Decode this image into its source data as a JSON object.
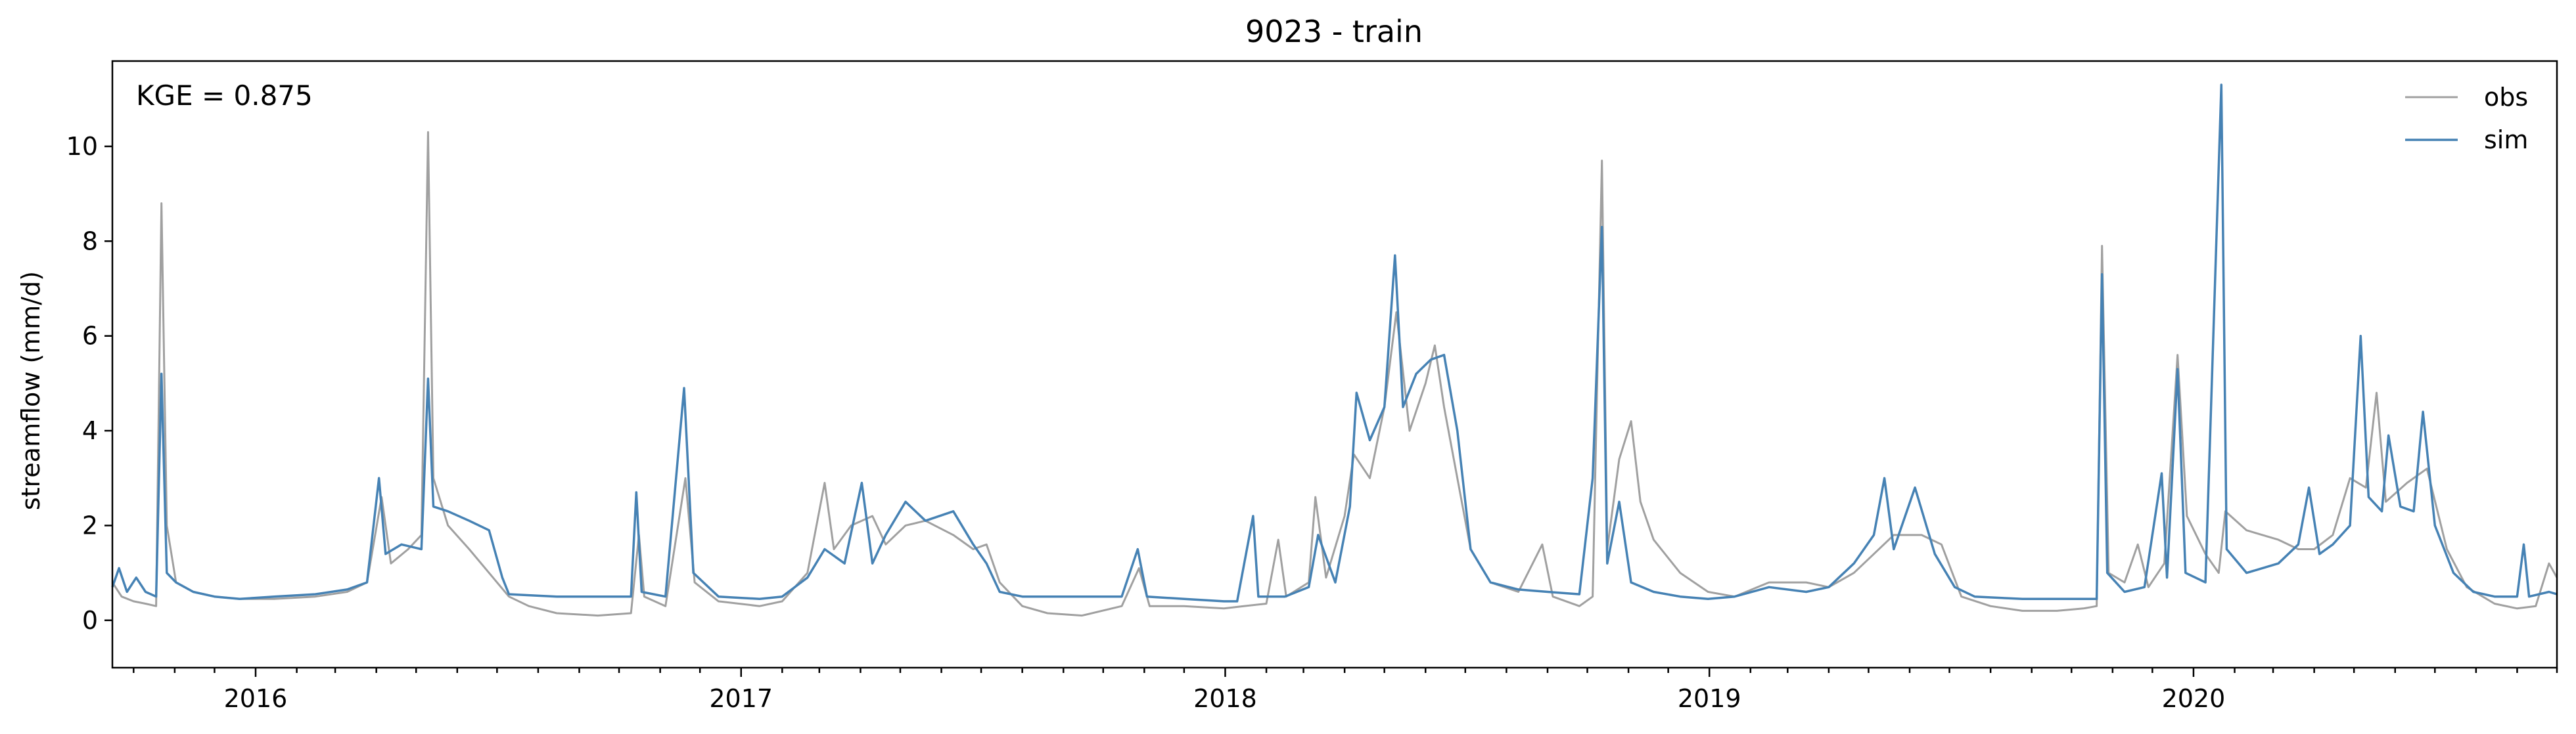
{
  "chart_data": {
    "type": "line",
    "title": "9023 - train",
    "xlabel": "",
    "ylabel": "streamflow (mm/d)",
    "annotation": "KGE = 0.875",
    "xlim": [
      "2015-09-15",
      "2020-10-01"
    ],
    "ylim": [
      -1.0,
      11.8
    ],
    "yticks": [
      0,
      2,
      4,
      6,
      8,
      10
    ],
    "xticks": [
      {
        "date": "2016-01-01",
        "label": "2016"
      },
      {
        "date": "2017-01-01",
        "label": "2017"
      },
      {
        "date": "2018-01-01",
        "label": "2018"
      },
      {
        "date": "2019-01-01",
        "label": "2019"
      },
      {
        "date": "2020-01-01",
        "label": "2020"
      }
    ],
    "grid": false,
    "legend_position": "top-right",
    "series": [
      {
        "name": "obs",
        "color": "#a0a0a0",
        "points": [
          [
            "2015-09-15",
            0.8
          ],
          [
            "2015-09-22",
            0.5
          ],
          [
            "2015-10-01",
            0.4
          ],
          [
            "2015-10-10",
            0.35
          ],
          [
            "2015-10-18",
            0.3
          ],
          [
            "2015-10-22",
            8.8
          ],
          [
            "2015-10-26",
            2.0
          ],
          [
            "2015-11-02",
            0.8
          ],
          [
            "2015-11-15",
            0.6
          ],
          [
            "2015-12-01",
            0.5
          ],
          [
            "2015-12-20",
            0.45
          ],
          [
            "2016-01-15",
            0.45
          ],
          [
            "2016-02-15",
            0.5
          ],
          [
            "2016-03-10",
            0.6
          ],
          [
            "2016-03-25",
            0.8
          ],
          [
            "2016-04-05",
            2.6
          ],
          [
            "2016-04-12",
            1.2
          ],
          [
            "2016-04-25",
            1.5
          ],
          [
            "2016-05-05",
            1.8
          ],
          [
            "2016-05-10",
            10.3
          ],
          [
            "2016-05-14",
            3.0
          ],
          [
            "2016-05-25",
            2.0
          ],
          [
            "2016-06-10",
            1.5
          ],
          [
            "2016-06-25",
            1.0
          ],
          [
            "2016-07-10",
            0.5
          ],
          [
            "2016-07-25",
            0.3
          ],
          [
            "2016-08-15",
            0.15
          ],
          [
            "2016-09-15",
            0.1
          ],
          [
            "2016-10-10",
            0.15
          ],
          [
            "2016-10-16",
            1.8
          ],
          [
            "2016-10-20",
            0.5
          ],
          [
            "2016-11-05",
            0.3
          ],
          [
            "2016-11-20",
            3.0
          ],
          [
            "2016-11-27",
            0.8
          ],
          [
            "2016-12-15",
            0.4
          ],
          [
            "2017-01-15",
            0.3
          ],
          [
            "2017-02-01",
            0.4
          ],
          [
            "2017-02-20",
            1.0
          ],
          [
            "2017-03-05",
            2.9
          ],
          [
            "2017-03-12",
            1.5
          ],
          [
            "2017-03-25",
            2.0
          ],
          [
            "2017-04-10",
            2.2
          ],
          [
            "2017-04-20",
            1.6
          ],
          [
            "2017-05-05",
            2.0
          ],
          [
            "2017-05-20",
            2.1
          ],
          [
            "2017-06-10",
            1.8
          ],
          [
            "2017-06-25",
            1.5
          ],
          [
            "2017-07-05",
            1.6
          ],
          [
            "2017-07-15",
            0.8
          ],
          [
            "2017-08-01",
            0.3
          ],
          [
            "2017-08-20",
            0.15
          ],
          [
            "2017-09-15",
            0.1
          ],
          [
            "2017-10-15",
            0.3
          ],
          [
            "2017-10-28",
            1.1
          ],
          [
            "2017-11-05",
            0.3
          ],
          [
            "2017-12-01",
            0.3
          ],
          [
            "2017-12-31",
            0.25
          ],
          [
            "2018-01-15",
            0.3
          ],
          [
            "2018-02-01",
            0.35
          ],
          [
            "2018-02-10",
            1.7
          ],
          [
            "2018-02-16",
            0.5
          ],
          [
            "2018-03-05",
            0.8
          ],
          [
            "2018-03-10",
            2.6
          ],
          [
            "2018-03-18",
            0.9
          ],
          [
            "2018-04-01",
            2.2
          ],
          [
            "2018-04-08",
            3.5
          ],
          [
            "2018-04-20",
            3.0
          ],
          [
            "2018-05-01",
            4.5
          ],
          [
            "2018-05-10",
            6.5
          ],
          [
            "2018-05-20",
            4.0
          ],
          [
            "2018-06-01",
            5.0
          ],
          [
            "2018-06-08",
            5.8
          ],
          [
            "2018-06-15",
            4.5
          ],
          [
            "2018-06-25",
            3.0
          ],
          [
            "2018-07-05",
            1.5
          ],
          [
            "2018-07-20",
            0.8
          ],
          [
            "2018-08-10",
            0.6
          ],
          [
            "2018-08-28",
            1.6
          ],
          [
            "2018-09-05",
            0.5
          ],
          [
            "2018-09-25",
            0.3
          ],
          [
            "2018-10-05",
            0.5
          ],
          [
            "2018-10-12",
            9.7
          ],
          [
            "2018-10-16",
            1.5
          ],
          [
            "2018-10-25",
            3.4
          ],
          [
            "2018-11-03",
            4.2
          ],
          [
            "2018-11-10",
            2.5
          ],
          [
            "2018-11-20",
            1.7
          ],
          [
            "2018-12-10",
            1.0
          ],
          [
            "2018-12-31",
            0.6
          ],
          [
            "2019-01-20",
            0.5
          ],
          [
            "2019-02-15",
            0.8
          ],
          [
            "2019-03-15",
            0.8
          ],
          [
            "2019-04-01",
            0.7
          ],
          [
            "2019-04-20",
            1.0
          ],
          [
            "2019-05-05",
            1.4
          ],
          [
            "2019-05-20",
            1.8
          ],
          [
            "2019-06-10",
            1.8
          ],
          [
            "2019-06-25",
            1.6
          ],
          [
            "2019-07-10",
            0.5
          ],
          [
            "2019-08-01",
            0.3
          ],
          [
            "2019-08-25",
            0.2
          ],
          [
            "2019-09-20",
            0.2
          ],
          [
            "2019-10-10",
            0.25
          ],
          [
            "2019-10-20",
            0.3
          ],
          [
            "2019-10-24",
            7.9
          ],
          [
            "2019-10-29",
            1.0
          ],
          [
            "2019-11-10",
            0.8
          ],
          [
            "2019-11-20",
            1.6
          ],
          [
            "2019-11-28",
            0.7
          ],
          [
            "2019-12-10",
            1.2
          ],
          [
            "2019-12-20",
            5.6
          ],
          [
            "2019-12-27",
            2.2
          ],
          [
            "2020-01-10",
            1.4
          ],
          [
            "2020-01-20",
            1.0
          ],
          [
            "2020-01-25",
            2.3
          ],
          [
            "2020-02-10",
            1.9
          ],
          [
            "2020-03-05",
            1.7
          ],
          [
            "2020-03-20",
            1.5
          ],
          [
            "2020-04-01",
            1.5
          ],
          [
            "2020-04-15",
            1.8
          ],
          [
            "2020-04-28",
            3.0
          ],
          [
            "2020-05-10",
            2.8
          ],
          [
            "2020-05-18",
            4.8
          ],
          [
            "2020-05-25",
            2.5
          ],
          [
            "2020-06-10",
            2.9
          ],
          [
            "2020-06-25",
            3.2
          ],
          [
            "2020-07-10",
            1.5
          ],
          [
            "2020-07-25",
            0.7
          ],
          [
            "2020-08-15",
            0.35
          ],
          [
            "2020-09-01",
            0.25
          ],
          [
            "2020-09-15",
            0.3
          ],
          [
            "2020-09-25",
            1.2
          ],
          [
            "2020-10-01",
            0.9
          ]
        ]
      },
      {
        "name": "sim",
        "color": "#4682b4",
        "points": [
          [
            "2015-09-15",
            0.7
          ],
          [
            "2015-09-20",
            1.1
          ],
          [
            "2015-09-26",
            0.6
          ],
          [
            "2015-10-03",
            0.9
          ],
          [
            "2015-10-10",
            0.6
          ],
          [
            "2015-10-18",
            0.5
          ],
          [
            "2015-10-22",
            5.2
          ],
          [
            "2015-10-26",
            1.0
          ],
          [
            "2015-11-02",
            0.8
          ],
          [
            "2015-11-15",
            0.6
          ],
          [
            "2015-12-01",
            0.5
          ],
          [
            "2015-12-20",
            0.45
          ],
          [
            "2016-01-15",
            0.5
          ],
          [
            "2016-02-15",
            0.55
          ],
          [
            "2016-03-10",
            0.65
          ],
          [
            "2016-03-25",
            0.8
          ],
          [
            "2016-04-03",
            3.0
          ],
          [
            "2016-04-08",
            1.4
          ],
          [
            "2016-04-20",
            1.6
          ],
          [
            "2016-05-05",
            1.5
          ],
          [
            "2016-05-10",
            5.1
          ],
          [
            "2016-05-14",
            2.4
          ],
          [
            "2016-05-25",
            2.3
          ],
          [
            "2016-06-10",
            2.1
          ],
          [
            "2016-06-25",
            1.9
          ],
          [
            "2016-07-05",
            0.9
          ],
          [
            "2016-07-10",
            0.55
          ],
          [
            "2016-08-15",
            0.5
          ],
          [
            "2016-09-15",
            0.5
          ],
          [
            "2016-10-10",
            0.5
          ],
          [
            "2016-10-14",
            2.7
          ],
          [
            "2016-10-18",
            0.6
          ],
          [
            "2016-11-05",
            0.5
          ],
          [
            "2016-11-19",
            4.9
          ],
          [
            "2016-11-26",
            1.0
          ],
          [
            "2016-12-15",
            0.5
          ],
          [
            "2017-01-15",
            0.45
          ],
          [
            "2017-02-01",
            0.5
          ],
          [
            "2017-02-20",
            0.9
          ],
          [
            "2017-03-05",
            1.5
          ],
          [
            "2017-03-20",
            1.2
          ],
          [
            "2017-04-02",
            2.9
          ],
          [
            "2017-04-10",
            1.2
          ],
          [
            "2017-04-20",
            1.8
          ],
          [
            "2017-05-05",
            2.5
          ],
          [
            "2017-05-20",
            2.1
          ],
          [
            "2017-06-10",
            2.3
          ],
          [
            "2017-06-25",
            1.6
          ],
          [
            "2017-07-05",
            1.2
          ],
          [
            "2017-07-15",
            0.6
          ],
          [
            "2017-08-01",
            0.5
          ],
          [
            "2017-09-15",
            0.5
          ],
          [
            "2017-10-15",
            0.5
          ],
          [
            "2017-10-27",
            1.5
          ],
          [
            "2017-11-03",
            0.5
          ],
          [
            "2017-12-01",
            0.45
          ],
          [
            "2017-12-31",
            0.4
          ],
          [
            "2018-01-10",
            0.4
          ],
          [
            "2018-01-22",
            2.2
          ],
          [
            "2018-01-26",
            0.5
          ],
          [
            "2018-02-15",
            0.5
          ],
          [
            "2018-03-05",
            0.7
          ],
          [
            "2018-03-12",
            1.8
          ],
          [
            "2018-03-25",
            0.8
          ],
          [
            "2018-04-05",
            2.4
          ],
          [
            "2018-04-10",
            4.8
          ],
          [
            "2018-04-20",
            3.8
          ],
          [
            "2018-05-01",
            4.5
          ],
          [
            "2018-05-09",
            7.7
          ],
          [
            "2018-05-15",
            4.5
          ],
          [
            "2018-05-25",
            5.2
          ],
          [
            "2018-06-05",
            5.5
          ],
          [
            "2018-06-15",
            5.6
          ],
          [
            "2018-06-25",
            4.0
          ],
          [
            "2018-07-05",
            1.5
          ],
          [
            "2018-07-20",
            0.8
          ],
          [
            "2018-08-10",
            0.65
          ],
          [
            "2018-09-01",
            0.6
          ],
          [
            "2018-09-25",
            0.55
          ],
          [
            "2018-10-05",
            3.0
          ],
          [
            "2018-10-12",
            8.3
          ],
          [
            "2018-10-16",
            1.2
          ],
          [
            "2018-10-25",
            2.5
          ],
          [
            "2018-11-03",
            0.8
          ],
          [
            "2018-11-20",
            0.6
          ],
          [
            "2018-12-10",
            0.5
          ],
          [
            "2018-12-31",
            0.45
          ],
          [
            "2019-01-20",
            0.5
          ],
          [
            "2019-02-15",
            0.7
          ],
          [
            "2019-03-15",
            0.6
          ],
          [
            "2019-04-01",
            0.7
          ],
          [
            "2019-04-20",
            1.2
          ],
          [
            "2019-05-05",
            1.8
          ],
          [
            "2019-05-13",
            3.0
          ],
          [
            "2019-05-20",
            1.5
          ],
          [
            "2019-06-05",
            2.8
          ],
          [
            "2019-06-20",
            1.4
          ],
          [
            "2019-07-05",
            0.7
          ],
          [
            "2019-07-20",
            0.5
          ],
          [
            "2019-08-25",
            0.45
          ],
          [
            "2019-09-20",
            0.45
          ],
          [
            "2019-10-10",
            0.45
          ],
          [
            "2019-10-20",
            0.45
          ],
          [
            "2019-10-24",
            7.3
          ],
          [
            "2019-10-28",
            1.0
          ],
          [
            "2019-11-10",
            0.6
          ],
          [
            "2019-11-25",
            0.7
          ],
          [
            "2019-12-08",
            3.1
          ],
          [
            "2019-12-12",
            0.9
          ],
          [
            "2019-12-20",
            5.3
          ],
          [
            "2019-12-26",
            1.0
          ],
          [
            "2020-01-10",
            0.8
          ],
          [
            "2020-01-22",
            11.3
          ],
          [
            "2020-01-26",
            1.5
          ],
          [
            "2020-02-10",
            1.0
          ],
          [
            "2020-03-05",
            1.2
          ],
          [
            "2020-03-20",
            1.6
          ],
          [
            "2020-03-28",
            2.8
          ],
          [
            "2020-04-05",
            1.4
          ],
          [
            "2020-04-15",
            1.6
          ],
          [
            "2020-04-28",
            2.0
          ],
          [
            "2020-05-06",
            6.0
          ],
          [
            "2020-05-12",
            2.6
          ],
          [
            "2020-05-22",
            2.3
          ],
          [
            "2020-05-27",
            3.9
          ],
          [
            "2020-06-05",
            2.4
          ],
          [
            "2020-06-15",
            2.3
          ],
          [
            "2020-06-22",
            4.4
          ],
          [
            "2020-07-01",
            2.0
          ],
          [
            "2020-07-15",
            1.0
          ],
          [
            "2020-07-30",
            0.6
          ],
          [
            "2020-08-15",
            0.5
          ],
          [
            "2020-09-01",
            0.5
          ],
          [
            "2020-09-06",
            1.6
          ],
          [
            "2020-09-10",
            0.5
          ],
          [
            "2020-09-25",
            0.6
          ],
          [
            "2020-10-01",
            0.55
          ]
        ]
      }
    ]
  }
}
